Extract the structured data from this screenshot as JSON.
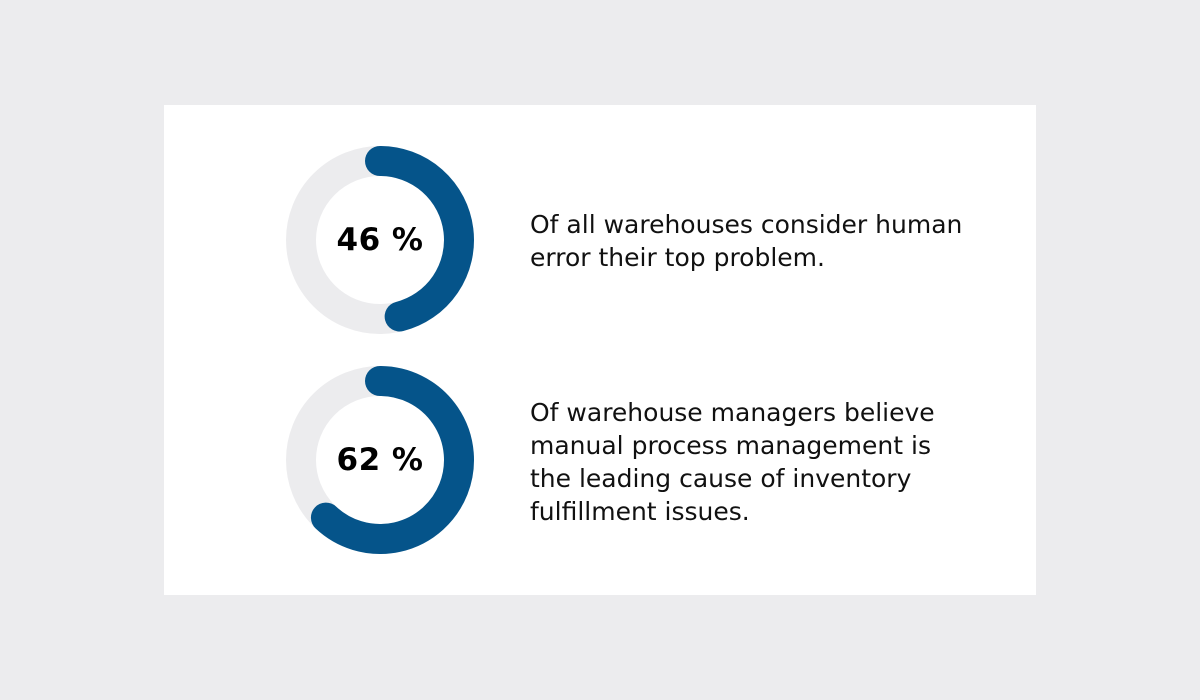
{
  "colors": {
    "accent": "#05548a",
    "track": "#ececee",
    "card": "#ffffff",
    "background": "#ececee"
  },
  "chart_data": [
    {
      "type": "donut",
      "value": 46,
      "max": 100,
      "label": "46 %",
      "caption": "Of all warehouses consider human error their top problem."
    },
    {
      "type": "donut",
      "value": 62,
      "max": 100,
      "label": "62 %",
      "caption": "Of warehouse managers believe manual process management is the leading cause of inventory fulfillment issues."
    }
  ]
}
